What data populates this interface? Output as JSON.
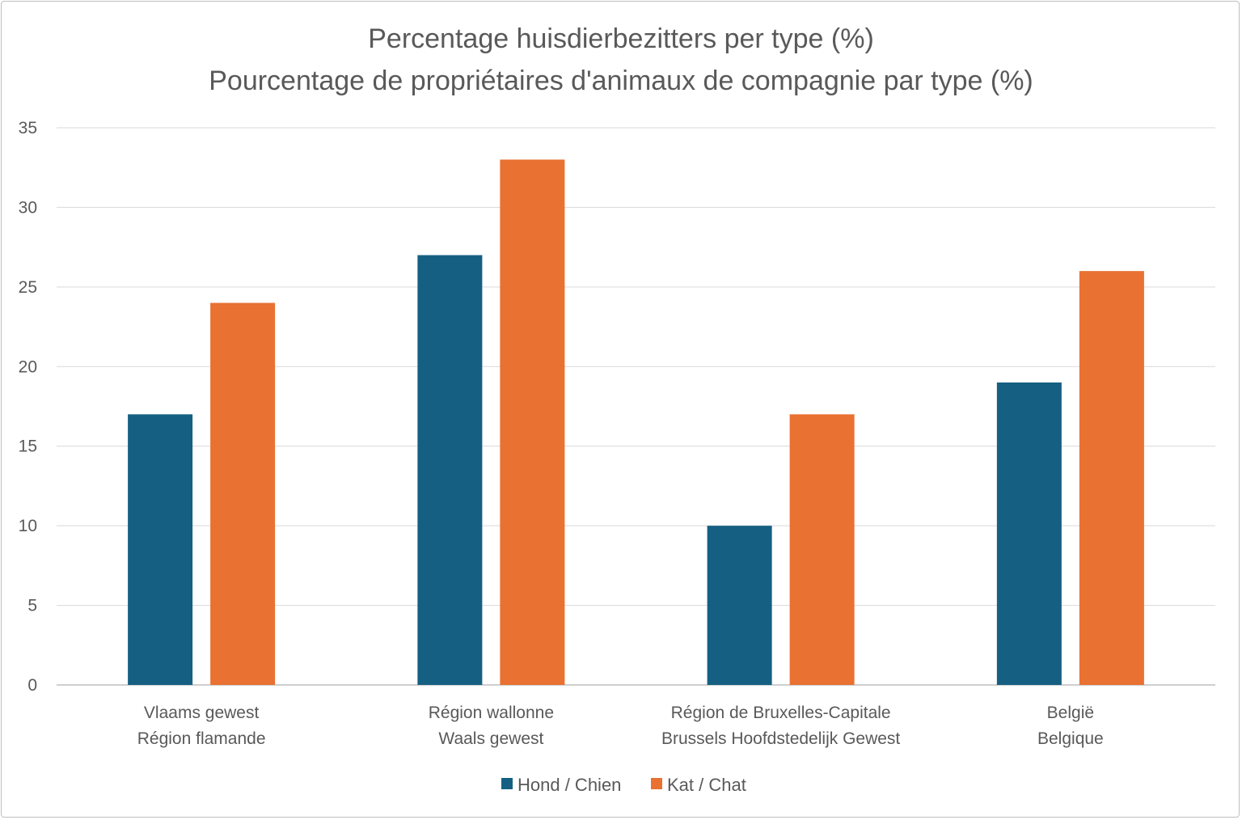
{
  "chart_data": {
    "type": "bar",
    "title": [
      "Percentage huisdierbezitters per type (%)",
      "Pourcentage de propriétaires d'animaux de compagnie par type (%)"
    ],
    "categories": [
      [
        "Vlaams gewest",
        "Région flamande"
      ],
      [
        "Région wallonne",
        "Waals gewest"
      ],
      [
        "Région de Bruxelles-Capitale",
        "Brussels Hoofdstedelijk Gewest"
      ],
      [
        "België",
        "Belgique"
      ]
    ],
    "series": [
      {
        "name": "Hond / Chien",
        "values": [
          17,
          27,
          10,
          19
        ],
        "color": "#156082"
      },
      {
        "name": "Kat / Chat",
        "values": [
          24,
          33,
          17,
          26
        ],
        "color": "#E97132"
      }
    ],
    "ylim": [
      0,
      35
    ],
    "yticks": [
      0,
      5,
      10,
      15,
      20,
      25,
      30,
      35
    ],
    "grid": true,
    "legend": "bottom"
  }
}
